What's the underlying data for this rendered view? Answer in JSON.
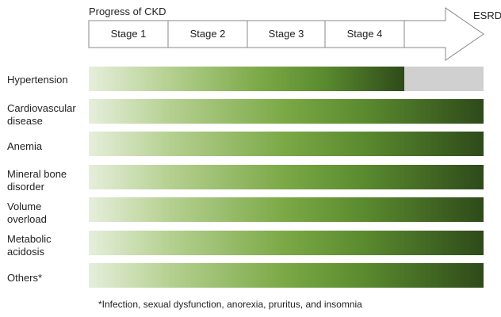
{
  "progress_label": "Progress of CKD",
  "stages": [
    "Stage 1",
    "Stage 2",
    "Stage 3",
    "Stage 4"
  ],
  "endpoint_label": "ESRD",
  "rows": [
    {
      "label": "Hypertension",
      "gray_segment": true
    },
    {
      "label": "Cardiovascular disease",
      "gray_segment": false
    },
    {
      "label": "Anemia",
      "gray_segment": false
    },
    {
      "label": "Mineral bone disorder",
      "gray_segment": false
    },
    {
      "label": "Volume overload",
      "gray_segment": false
    },
    {
      "label": "Metabolic acidosis",
      "gray_segment": false
    },
    {
      "label": "Others*",
      "gray_segment": false
    }
  ],
  "footnote": "*Infection, sexual dysfunction, anorexia, pruritus, and insomnia",
  "colors": {
    "gradient_light": "#e6eedc",
    "gradient_mid": "#7aa845",
    "gradient_dark": "#2e4a1a",
    "gray_segment": "#d0d0d0",
    "arrow_stroke": "#888888"
  }
}
